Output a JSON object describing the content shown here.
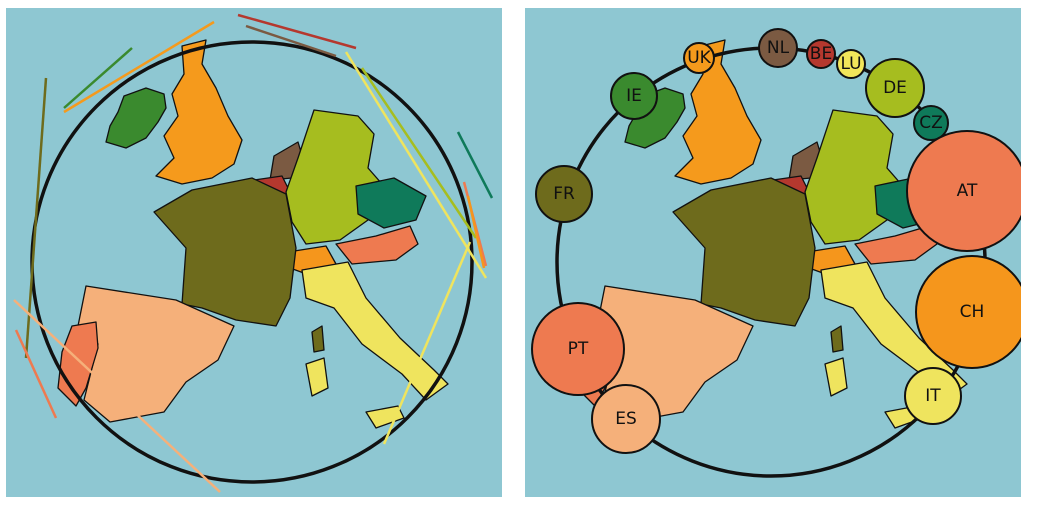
{
  "colors": {
    "sea": "#8ec7d2",
    "uk": "#f59a1c",
    "ie": "#3a8a2e",
    "fr": "#6e6b1c",
    "nl": "#7b5a42",
    "be": "#b5382e",
    "lu": "#f2e65a",
    "de": "#a6bd1f",
    "cz": "#0f7a5a",
    "at": "#ee7a50",
    "ch": "#f5961c",
    "it": "#efe45e",
    "es": "#f5b07a",
    "pt": "#ee7a50"
  },
  "bubbles": [
    {
      "code": "UK",
      "color": "#f59a1c",
      "size": 15
    },
    {
      "code": "NL",
      "color": "#7b5a42",
      "size": 19
    },
    {
      "code": "BE",
      "color": "#b5382e",
      "size": 14
    },
    {
      "code": "LU",
      "color": "#f2e65a",
      "size": 14
    },
    {
      "code": "IE",
      "color": "#3a8a2e",
      "size": 23
    },
    {
      "code": "DE",
      "color": "#a6bd1f",
      "size": 29
    },
    {
      "code": "CZ",
      "color": "#0f7a5a",
      "size": 17
    },
    {
      "code": "FR",
      "color": "#6e6b1c",
      "size": 28
    },
    {
      "code": "AT",
      "color": "#ee7a50",
      "size": 60
    },
    {
      "code": "CH",
      "color": "#f5961c",
      "size": 56
    },
    {
      "code": "PT",
      "color": "#ee7a50",
      "size": 46
    },
    {
      "code": "IT",
      "color": "#efe45e",
      "size": 28
    },
    {
      "code": "ES",
      "color": "#f5b07a",
      "size": 34
    }
  ]
}
